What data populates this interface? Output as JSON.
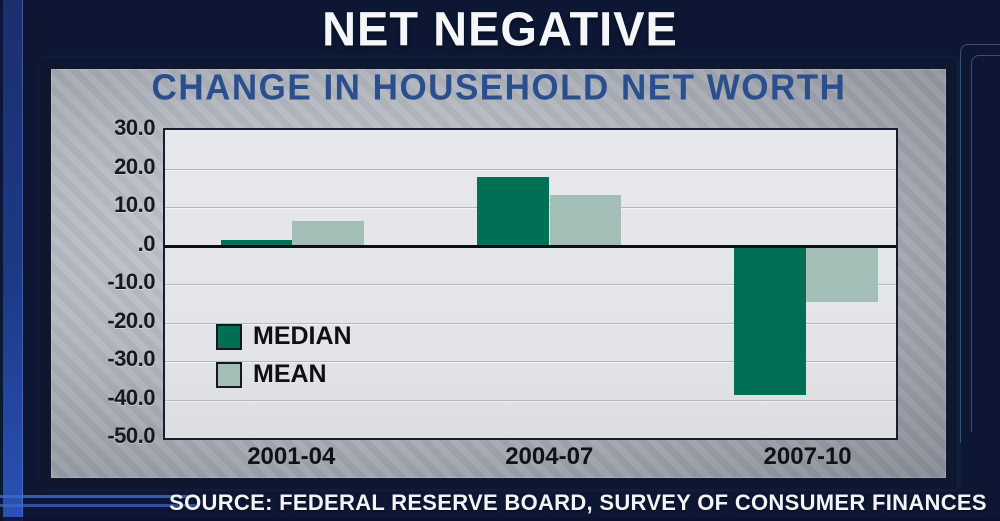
{
  "header": {
    "title": "NET NEGATIVE"
  },
  "panel": {
    "title": "CHANGE IN HOUSEHOLD NET WORTH"
  },
  "source": {
    "text": "SOURCE: FEDERAL RESERVE BOARD, SURVEY OF CONSUMER FINANCES"
  },
  "colors": {
    "median_bar": "#006F55",
    "mean_bar": "#A3BEB7",
    "panel_title_blue": "#2B4F8E",
    "background_navy": "#16245A",
    "background_blue": "#2550BA",
    "panel_border": "#0F1730",
    "plot_background": "#E4E6E9",
    "zero_line": "#0D0F14"
  },
  "chart_data": {
    "type": "bar",
    "title": "CHANGE IN HOUSEHOLD NET WORTH",
    "categories": [
      "2001-04",
      "2004-07",
      "2007-10"
    ],
    "series": [
      {
        "name": "MEDIAN",
        "color": "#006F55",
        "values": [
          1.5,
          17.9,
          -38.8
        ]
      },
      {
        "name": "MEAN",
        "color": "#A3BEB7",
        "values": [
          6.3,
          13.1,
          -14.7
        ]
      }
    ],
    "ylim": [
      -50,
      30
    ],
    "ytick_step": 10,
    "yticks": [
      30,
      20,
      10,
      0,
      -10,
      -20,
      -30,
      -40,
      -50
    ],
    "ytick_labels": [
      "30.0",
      "20.0",
      "10.0",
      ".0",
      "-10.0",
      "-20.0",
      "-30.0",
      "-40.0",
      "-50.0"
    ],
    "grid": true,
    "legend_position": "inside-bottom-left"
  }
}
